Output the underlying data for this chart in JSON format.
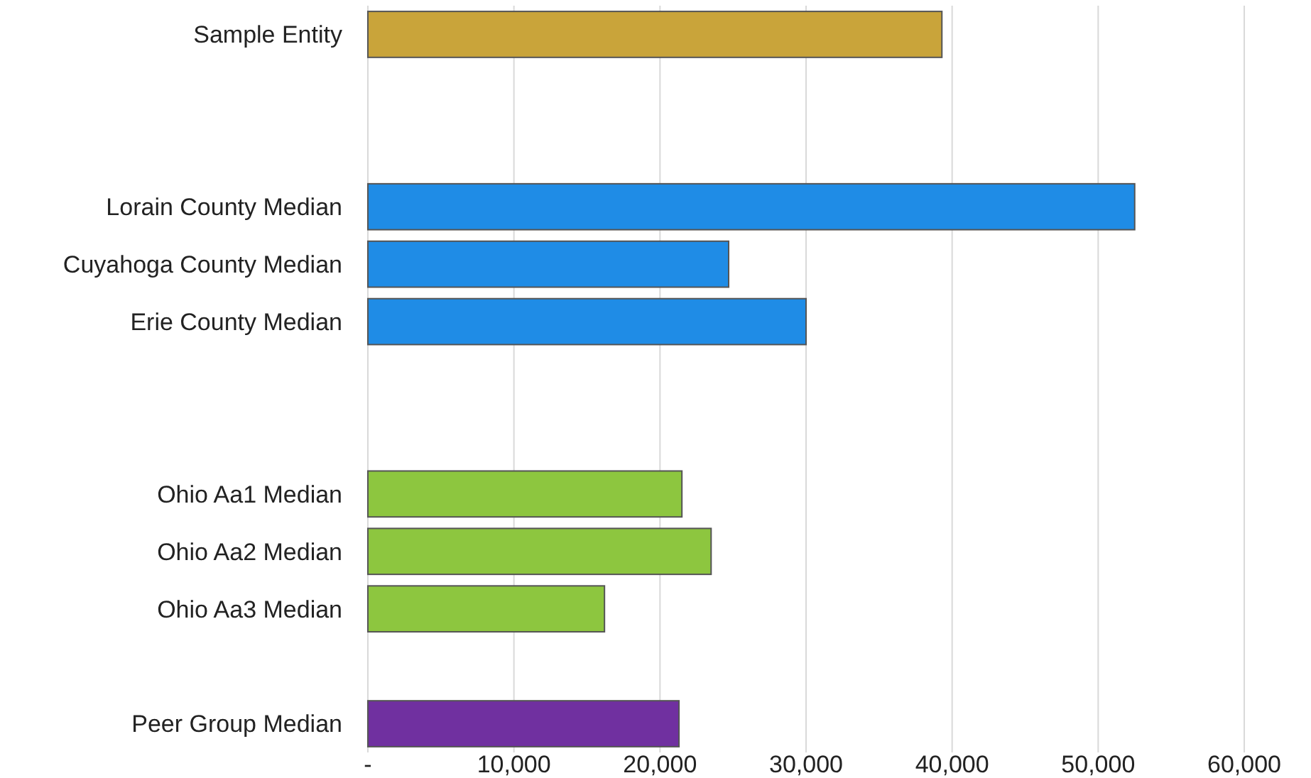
{
  "chart_data": {
    "type": "bar",
    "orientation": "horizontal",
    "categories": [
      "Sample Entity",
      null,
      null,
      "Lorain County Median",
      "Cuyahoga County Median",
      "Erie County Median",
      null,
      null,
      "Ohio Aa1 Median",
      "Ohio Aa2 Median",
      "Ohio Aa3 Median",
      null,
      "Peer Group Median"
    ],
    "values": [
      39300,
      null,
      null,
      52500,
      24700,
      30000,
      null,
      null,
      21500,
      23500,
      16200,
      null,
      21300
    ],
    "colors": [
      "#c9a43a",
      null,
      null,
      "#1f8ce6",
      "#1f8ce6",
      "#1f8ce6",
      null,
      null,
      "#8dc63f",
      "#8dc63f",
      "#8dc63f",
      null,
      "#7030a0"
    ],
    "xlim": [
      0,
      60000
    ],
    "xticks": [
      {
        "value": 0,
        "label": "-"
      },
      {
        "value": 10000,
        "label": "10,000"
      },
      {
        "value": 20000,
        "label": "20,000"
      },
      {
        "value": 30000,
        "label": "30,000"
      },
      {
        "value": 40000,
        "label": "40,000"
      },
      {
        "value": 50000,
        "label": "50,000"
      },
      {
        "value": 60000,
        "label": "60,000"
      }
    ],
    "grid": "x"
  }
}
